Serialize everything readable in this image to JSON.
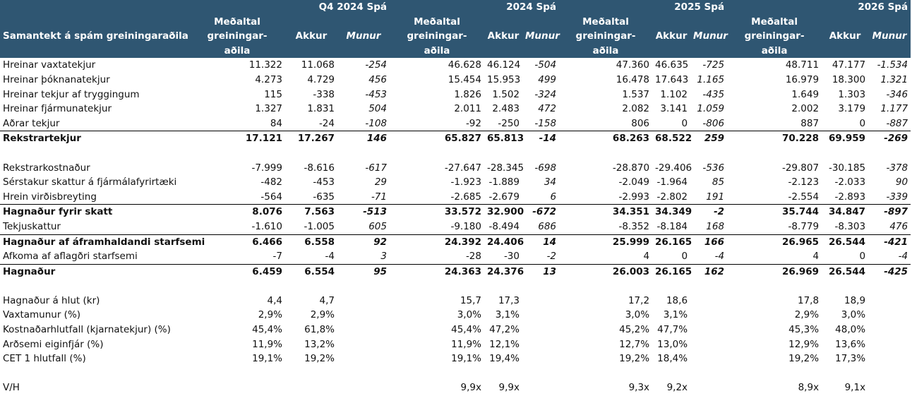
{
  "header": {
    "title": "Samantekt á spám greiningaraðila",
    "periods": [
      "Q4 2024 Spá",
      "2024 Spá",
      "2025 Spá",
      "2026 Spá"
    ],
    "col_avg_line1": "Meðaltal",
    "col_avg_line2": "greiningar-",
    "col_avg_line3": "aðila",
    "col_actual": "Akkur",
    "col_diff": "Munur"
  },
  "rows": [
    {
      "label": "Hreinar vaxtatekjur",
      "v": [
        "11.322",
        "11.068",
        "-254",
        "46.628",
        "46.124",
        "-504",
        "47.360",
        "46.635",
        "-725",
        "48.711",
        "47.177",
        "-1.534"
      ]
    },
    {
      "label": "Hreinar þóknanatekjur",
      "v": [
        "4.273",
        "4.729",
        "456",
        "15.454",
        "15.953",
        "499",
        "16.478",
        "17.643",
        "1.165",
        "16.979",
        "18.300",
        "1.321"
      ]
    },
    {
      "label": "Hreinar tekjur af tryggingum",
      "v": [
        "115",
        "-338",
        "-453",
        "1.826",
        "1.502",
        "-324",
        "1.537",
        "1.102",
        "-435",
        "1.649",
        "1.303",
        "-346"
      ]
    },
    {
      "label": "Hreinar fjármunatekjur",
      "v": [
        "1.327",
        "1.831",
        "504",
        "2.011",
        "2.483",
        "472",
        "2.082",
        "3.141",
        "1.059",
        "2.002",
        "3.179",
        "1.177"
      ]
    },
    {
      "label": "Aðrar tekjur",
      "v": [
        "84",
        "-24",
        "-108",
        "-92",
        "-250",
        "-158",
        "806",
        "0",
        "-806",
        "887",
        "0",
        "-887"
      ]
    },
    {
      "label": "Rekstrartekjur",
      "v": [
        "17.121",
        "17.267",
        "146",
        "65.827",
        "65.813",
        "-14",
        "68.263",
        "68.522",
        "259",
        "70.228",
        "69.959",
        "-269"
      ]
    },
    {
      "label": "",
      "v": [
        "",
        "",
        "",
        "",
        "",
        "",
        "",
        "",
        "",
        "",
        "",
        ""
      ]
    },
    {
      "label": "Rekstrarkostnaður",
      "v": [
        "-7.999",
        "-8.616",
        "-617",
        "-27.647",
        "-28.345",
        "-698",
        "-28.870",
        "-29.406",
        "-536",
        "-29.807",
        "-30.185",
        "-378"
      ]
    },
    {
      "label": "Sérstakur skattur á fjármálafyrirtæki",
      "v": [
        "-482",
        "-453",
        "29",
        "-1.923",
        "-1.889",
        "34",
        "-2.049",
        "-1.964",
        "85",
        "-2.123",
        "-2.033",
        "90"
      ]
    },
    {
      "label": "Hrein virðisbreyting",
      "v": [
        "-564",
        "-635",
        "-71",
        "-2.685",
        "-2.679",
        "6",
        "-2.993",
        "-2.802",
        "191",
        "-2.554",
        "-2.893",
        "-339"
      ]
    },
    {
      "label": "Hagnaður fyrir skatt",
      "v": [
        "8.076",
        "7.563",
        "-513",
        "33.572",
        "32.900",
        "-672",
        "34.351",
        "34.349",
        "-2",
        "35.744",
        "34.847",
        "-897"
      ]
    },
    {
      "label": "Tekjuskattur",
      "v": [
        "-1.610",
        "-1.005",
        "605",
        "-9.180",
        "-8.494",
        "686",
        "-8.352",
        "-8.184",
        "168",
        "-8.779",
        "-8.303",
        "476"
      ]
    },
    {
      "label": "Hagnaður af áframhaldandi starfsemi",
      "v": [
        "6.466",
        "6.558",
        "92",
        "24.392",
        "24.406",
        "14",
        "25.999",
        "26.165",
        "166",
        "26.965",
        "26.544",
        "-421"
      ]
    },
    {
      "label": "Afkoma af aflagðri starfsemi",
      "v": [
        "-7",
        "-4",
        "3",
        "-28",
        "-30",
        "-2",
        "4",
        "0",
        "-4",
        "4",
        "0",
        "-4"
      ]
    },
    {
      "label": "Hagnaður",
      "v": [
        "6.459",
        "6.554",
        "95",
        "24.363",
        "24.376",
        "13",
        "26.003",
        "26.165",
        "162",
        "26.969",
        "26.544",
        "-425"
      ]
    },
    {
      "label": "",
      "v": [
        "",
        "",
        "",
        "",
        "",
        "",
        "",
        "",
        "",
        "",
        "",
        ""
      ]
    },
    {
      "label": "Hagnaður á hlut (kr)",
      "v": [
        "4,4",
        "4,7",
        "",
        "15,7",
        "17,3",
        "",
        "17,2",
        "18,6",
        "",
        "17,8",
        "18,9",
        ""
      ]
    },
    {
      "label": "Vaxtamunur (%)",
      "v": [
        "2,9%",
        "2,9%",
        "",
        "3,0%",
        "3,1%",
        "",
        "3,0%",
        "3,1%",
        "",
        "2,9%",
        "3,0%",
        ""
      ]
    },
    {
      "label": "Kostnaðarhlutfall (kjarnatekjur) (%)",
      "v": [
        "45,4%",
        "61,8%",
        "",
        "45,4%",
        "47,2%",
        "",
        "45,2%",
        "47,7%",
        "",
        "45,3%",
        "48,0%",
        ""
      ]
    },
    {
      "label": "Arðsemi eiginfjár (%)",
      "v": [
        "11,9%",
        "13,2%",
        "",
        "11,9%",
        "12,1%",
        "",
        "12,7%",
        "13,0%",
        "",
        "12,9%",
        "13,6%",
        ""
      ]
    },
    {
      "label": "CET 1 hlutfall (%)",
      "v": [
        "19,1%",
        "19,2%",
        "",
        "19,1%",
        "19,4%",
        "",
        "19,2%",
        "18,4%",
        "",
        "19,2%",
        "17,3%",
        ""
      ]
    },
    {
      "label": "",
      "v": [
        "",
        "",
        "",
        "",
        "",
        "",
        "",
        "",
        "",
        "",
        "",
        ""
      ]
    },
    {
      "label": "V/H",
      "v": [
        "",
        "",
        "",
        "9,9x",
        "9,9x",
        "",
        "9,3x",
        "9,2x",
        "",
        "8,9x",
        "9,1x",
        ""
      ]
    }
  ]
}
